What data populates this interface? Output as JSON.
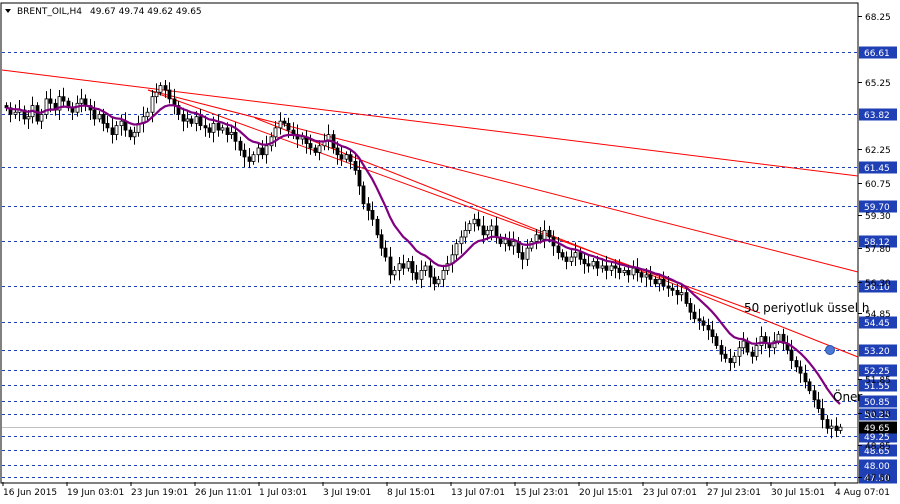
{
  "header": {
    "symbol_label": "BRENT_OIL,H4",
    "ohlc_label": "49.67 49.74 49.62 49.65"
  },
  "colors": {
    "background": "#ffffff",
    "candle_body": "#000000",
    "level_line": "#1f3fb5",
    "trendline": "#ff0000",
    "ema": "#800080",
    "ema_marker": "#4a78d6",
    "current_price_line": "#c0c0c0"
  },
  "chart_data": {
    "type": "candlestick",
    "title": "BRENT_OIL,H4",
    "price_ticks": [
      "68.25",
      "65.25",
      "62.25",
      "60.75",
      "59.30",
      "57.80",
      "56.30",
      "54.85",
      "51.85",
      "50.30",
      "48.85",
      "47.50"
    ],
    "levels": [
      {
        "label": "66.61",
        "value": 66.61
      },
      {
        "label": "63.82",
        "value": 63.82
      },
      {
        "label": "61.45",
        "value": 61.45
      },
      {
        "label": "59.70",
        "value": 59.7
      },
      {
        "label": "58.12",
        "value": 58.12
      },
      {
        "label": "56.10",
        "value": 56.1
      },
      {
        "label": "54.45",
        "value": 54.45
      },
      {
        "label": "53.20",
        "value": 53.2
      },
      {
        "label": "52.25",
        "value": 52.25
      },
      {
        "label": "51.55",
        "value": 51.55
      },
      {
        "label": "50.85",
        "value": 50.85
      },
      {
        "label": "50.25",
        "value": 50.25
      },
      {
        "label": "49.25",
        "value": 49.25
      },
      {
        "label": "48.65",
        "value": 48.65
      },
      {
        "label": "48.00",
        "value": 48.0
      },
      {
        "label": "47.50",
        "value": 47.5
      }
    ],
    "current_price": {
      "label": "49.65",
      "value": 49.65
    },
    "date_ticks": [
      "16 Jun 2015",
      "19 Jun 03:01",
      "23 Jun 19:01",
      "26 Jun 11:01",
      "1 Jul 03:01",
      "3 Jul 19:01",
      "8 Jul 15:01",
      "13 Jul 07:01",
      "15 Jul 23:01",
      "20 Jul 15:01",
      "23 Jul 07:01",
      "27 Jul 23:01",
      "30 Jul 15:01",
      "4 Aug 07:01"
    ],
    "annotations": {
      "ema_label": "50 periyotluk üssel h",
      "side_label": "Öner"
    },
    "closes": [
      64.1,
      63.8,
      63.9,
      64.0,
      63.6,
      63.7,
      64.2,
      63.5,
      63.8,
      64.5,
      64.3,
      64.0,
      64.6,
      64.4,
      64.1,
      63.9,
      64.3,
      64.5,
      64.2,
      64.0,
      63.6,
      63.8,
      63.4,
      63.2,
      62.9,
      63.3,
      63.5,
      63.1,
      62.8,
      63.0,
      63.4,
      63.7,
      63.9,
      64.6,
      64.8,
      65.1,
      64.9,
      64.5,
      64.2,
      63.8,
      63.5,
      63.6,
      63.4,
      63.7,
      63.3,
      63.2,
      63.0,
      63.4,
      63.1,
      63.2,
      62.9,
      63.0,
      62.6,
      62.2,
      61.9,
      61.7,
      62.0,
      62.3,
      62.0,
      62.4,
      62.8,
      63.2,
      63.5,
      63.4,
      63.1,
      62.9,
      62.7,
      62.8,
      62.5,
      62.3,
      62.1,
      62.4,
      62.6,
      62.9,
      62.3,
      62.0,
      61.8,
      62.0,
      61.7,
      61.3,
      60.6,
      59.8,
      59.5,
      59.1,
      58.4,
      57.8,
      57.4,
      56.6,
      56.8,
      57.1,
      56.9,
      57.2,
      56.7,
      56.4,
      56.8,
      57.0,
      56.5,
      56.2,
      56.4,
      56.8,
      57.1,
      57.5,
      58.0,
      58.3,
      58.6,
      58.9,
      59.1,
      58.8,
      58.4,
      58.6,
      58.8,
      58.3,
      58.0,
      58.2,
      57.9,
      58.1,
      57.6,
      57.3,
      57.8,
      58.1,
      58.4,
      58.2,
      58.6,
      58.3,
      57.9,
      57.6,
      57.4,
      57.2,
      57.4,
      57.6,
      57.3,
      57.1,
      57.0,
      57.2,
      56.9,
      57.0,
      56.8,
      57.0,
      56.9,
      56.7,
      56.8,
      56.6,
      56.9,
      56.7,
      56.5,
      56.6,
      56.4,
      56.2,
      56.4,
      56.1,
      56.0,
      55.9,
      55.7,
      55.8,
      55.3,
      54.9,
      54.6,
      54.5,
      54.3,
      54.1,
      53.8,
      53.4,
      53.0,
      52.8,
      52.6,
      52.9,
      53.3,
      53.6,
      53.1,
      52.9,
      53.4,
      53.8,
      53.5,
      53.3,
      53.6,
      53.9,
      53.5,
      53.2,
      52.7,
      52.4,
      52.1,
      51.7,
      51.3,
      50.9,
      50.5,
      50.0,
      49.6,
      49.7,
      49.5,
      49.65
    ]
  }
}
